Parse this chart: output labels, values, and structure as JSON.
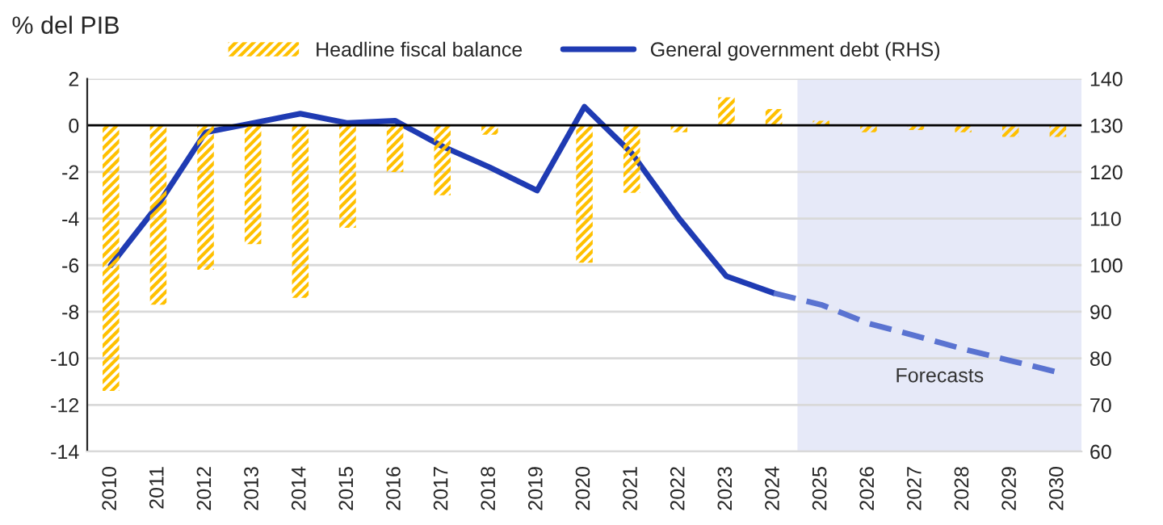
{
  "chart_data": {
    "type": "bar",
    "title": "% del PIB",
    "categories": [
      "2010",
      "2011",
      "2012",
      "2013",
      "2014",
      "2015",
      "2016",
      "2017",
      "2018",
      "2019",
      "2020",
      "2021",
      "2022",
      "2023",
      "2024",
      "2025",
      "2026",
      "2027",
      "2028",
      "2029",
      "2030"
    ],
    "series": [
      {
        "name": "Headline fiscal balance",
        "color": "#ffc000",
        "values": [
          -11.4,
          -7.7,
          -6.2,
          -5.1,
          -7.4,
          -4.4,
          -2.0,
          -3.0,
          -0.4,
          0,
          -5.9,
          -2.9,
          -0.3,
          1.2,
          0.7,
          0.2,
          -0.3,
          -0.2,
          -0.3,
          -0.5,
          -0.5
        ]
      },
      {
        "name": "General government debt (RHS)",
        "type": "line",
        "axis": "y2",
        "color": "#1f3bb3",
        "line_style": "solid",
        "values": [
          100,
          113,
          128.5,
          130.5,
          132.5,
          130.5,
          131,
          125.5,
          121,
          116,
          134,
          124,
          110,
          97.6,
          94,
          null,
          null,
          null,
          null,
          null,
          null
        ]
      },
      {
        "type": "line",
        "axis": "y2",
        "color": "#5a73d1",
        "line_style": "dashed",
        "values": [
          null,
          null,
          null,
          null,
          null,
          null,
          null,
          null,
          null,
          null,
          null,
          null,
          null,
          null,
          94,
          91.5,
          87.5,
          84.8,
          82,
          79.5,
          77
        ]
      }
    ],
    "ylim": [
      -14,
      2
    ],
    "yticks": [
      -14,
      -12,
      -10,
      -8,
      -6,
      -4,
      -2,
      0,
      2
    ],
    "y2lim": [
      60,
      140
    ],
    "y2ticks": [
      60,
      70,
      80,
      90,
      100,
      110,
      120,
      130,
      140
    ],
    "ref_lines": [
      {
        "axis": "y",
        "value": 0,
        "color": "#000000"
      }
    ],
    "bands": [
      {
        "axis": "x",
        "from": "2025",
        "to": "2030",
        "label": "Forecasts",
        "color": "#e6e9f8"
      }
    ],
    "grid": "y",
    "legend": "top"
  }
}
